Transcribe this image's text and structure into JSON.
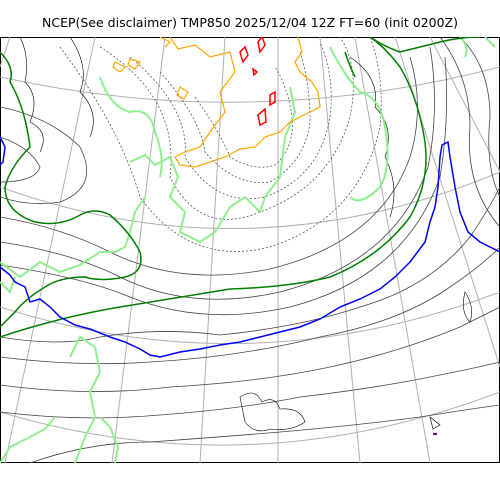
{
  "title": "NCEP(See disclaimer) TMP850 2025/12/04 12Z FT=60 (init 0200Z)",
  "colors": {
    "graticule": "#b0b0b0",
    "coast": "#000000",
    "isotherm_thin": "#444444",
    "isotherm_dashed": "#555555",
    "green_dark": "#008000",
    "green_light": "#90ee90",
    "blue": "#0000ff",
    "orange": "#ffa500",
    "red": "#ff0000",
    "purple": "#800080"
  },
  "map": {
    "projection": "polar-stereographic",
    "graticule": true,
    "coastlines": true,
    "field": "TMP850"
  }
}
